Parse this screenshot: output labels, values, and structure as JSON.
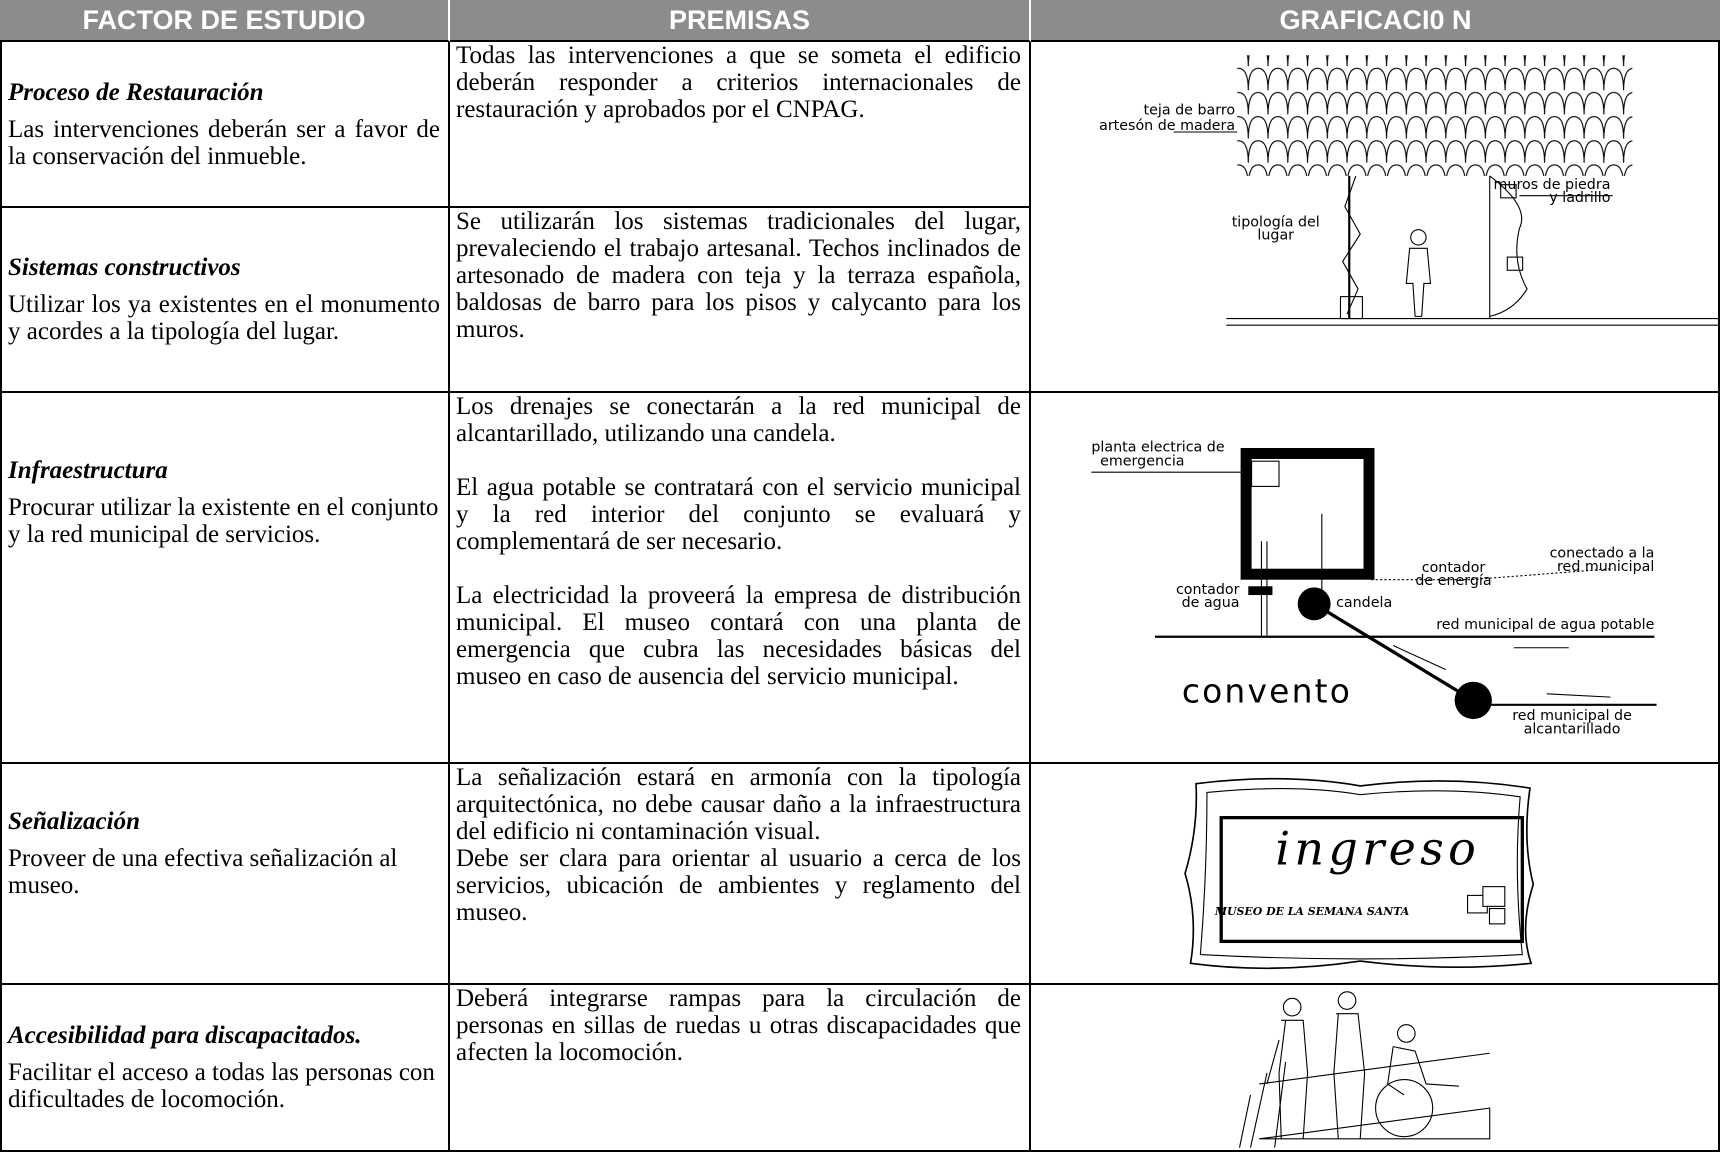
{
  "header": [
    "FACTOR DE ESTUDIO",
    "PREMISAS",
    "GRAFICACI0 N"
  ],
  "rows": [
    {
      "factor": "Proceso de Restauración",
      "description": "Las intervenciones deberán ser a favor de la conservación del inmueble.",
      "premisas": [
        "Todas las intervenciones a que se someta el edificio deberán responder a criterios internacionales de restauración y aprobados por el CNPAG."
      ]
    },
    {
      "factor": "Sistemas constructivos",
      "description": "Utilizar los ya existentes en el monumento y acordes a la tipología del lugar.",
      "premisas": [
        "Se utilizarán los sistemas tradicionales del lugar, prevaleciendo el trabajo artesanal. Techos inclinados de artesonado de madera con teja y la terraza española, baldosas de barro para los pisos y calycanto para los muros."
      ]
    },
    {
      "factor": "Infraestructura",
      "description": "Procurar utilizar la existente en el conjunto y la red municipal de servicios.",
      "premisas": [
        "Los drenajes se conectarán a la red municipal de alcantarillado, utilizando una candela.",
        "El agua potable se contratará con el servicio municipal y la red interior del conjunto se evaluará y complementará de ser necesario.",
        "La electricidad la proveerá la empresa de distribución municipal. El museo contará con una planta de emergencia que cubra las necesidades básicas del museo en caso de ausencia del servicio municipal."
      ]
    },
    {
      "factor": "Señalización",
      "description": "Proveer de una efectiva señalización al museo.",
      "premisas": [
        "La señalización estará en armonía con la tipología arquitectónica, no debe causar daño a la infraestructura del edificio ni contaminación visual.",
        "Debe ser clara para orientar al usuario a cerca de los servicios, ubicación de ambientes y reglamento del museo."
      ]
    },
    {
      "factor": "Accesibilidad para discapacitados.",
      "description": "Facilitar el acceso a todas las personas con dificultades de locomoción.",
      "premisas": [
        "Deberá integrarse rampas para la circulación de personas en sillas de ruedas u otras discapacidades que afecten la locomoción."
      ]
    }
  ],
  "graphics": {
    "techo": [
      "teja de barro",
      "artesón de madera",
      "muros de piedra",
      "y ladrillo",
      "tipología del",
      "lugar"
    ],
    "infraestructura": [
      "planta electrica de",
      "emergencia",
      "contador",
      "de agua",
      "candela",
      "contador",
      "de energía",
      "conectado a la",
      "red municipal",
      "red municipal de agua potable",
      "convento",
      "red municipal de",
      "alcantarillado"
    ],
    "senalizacion": [
      "ingreso",
      "MUSEO DE LA SEMANA SANTA"
    ]
  }
}
